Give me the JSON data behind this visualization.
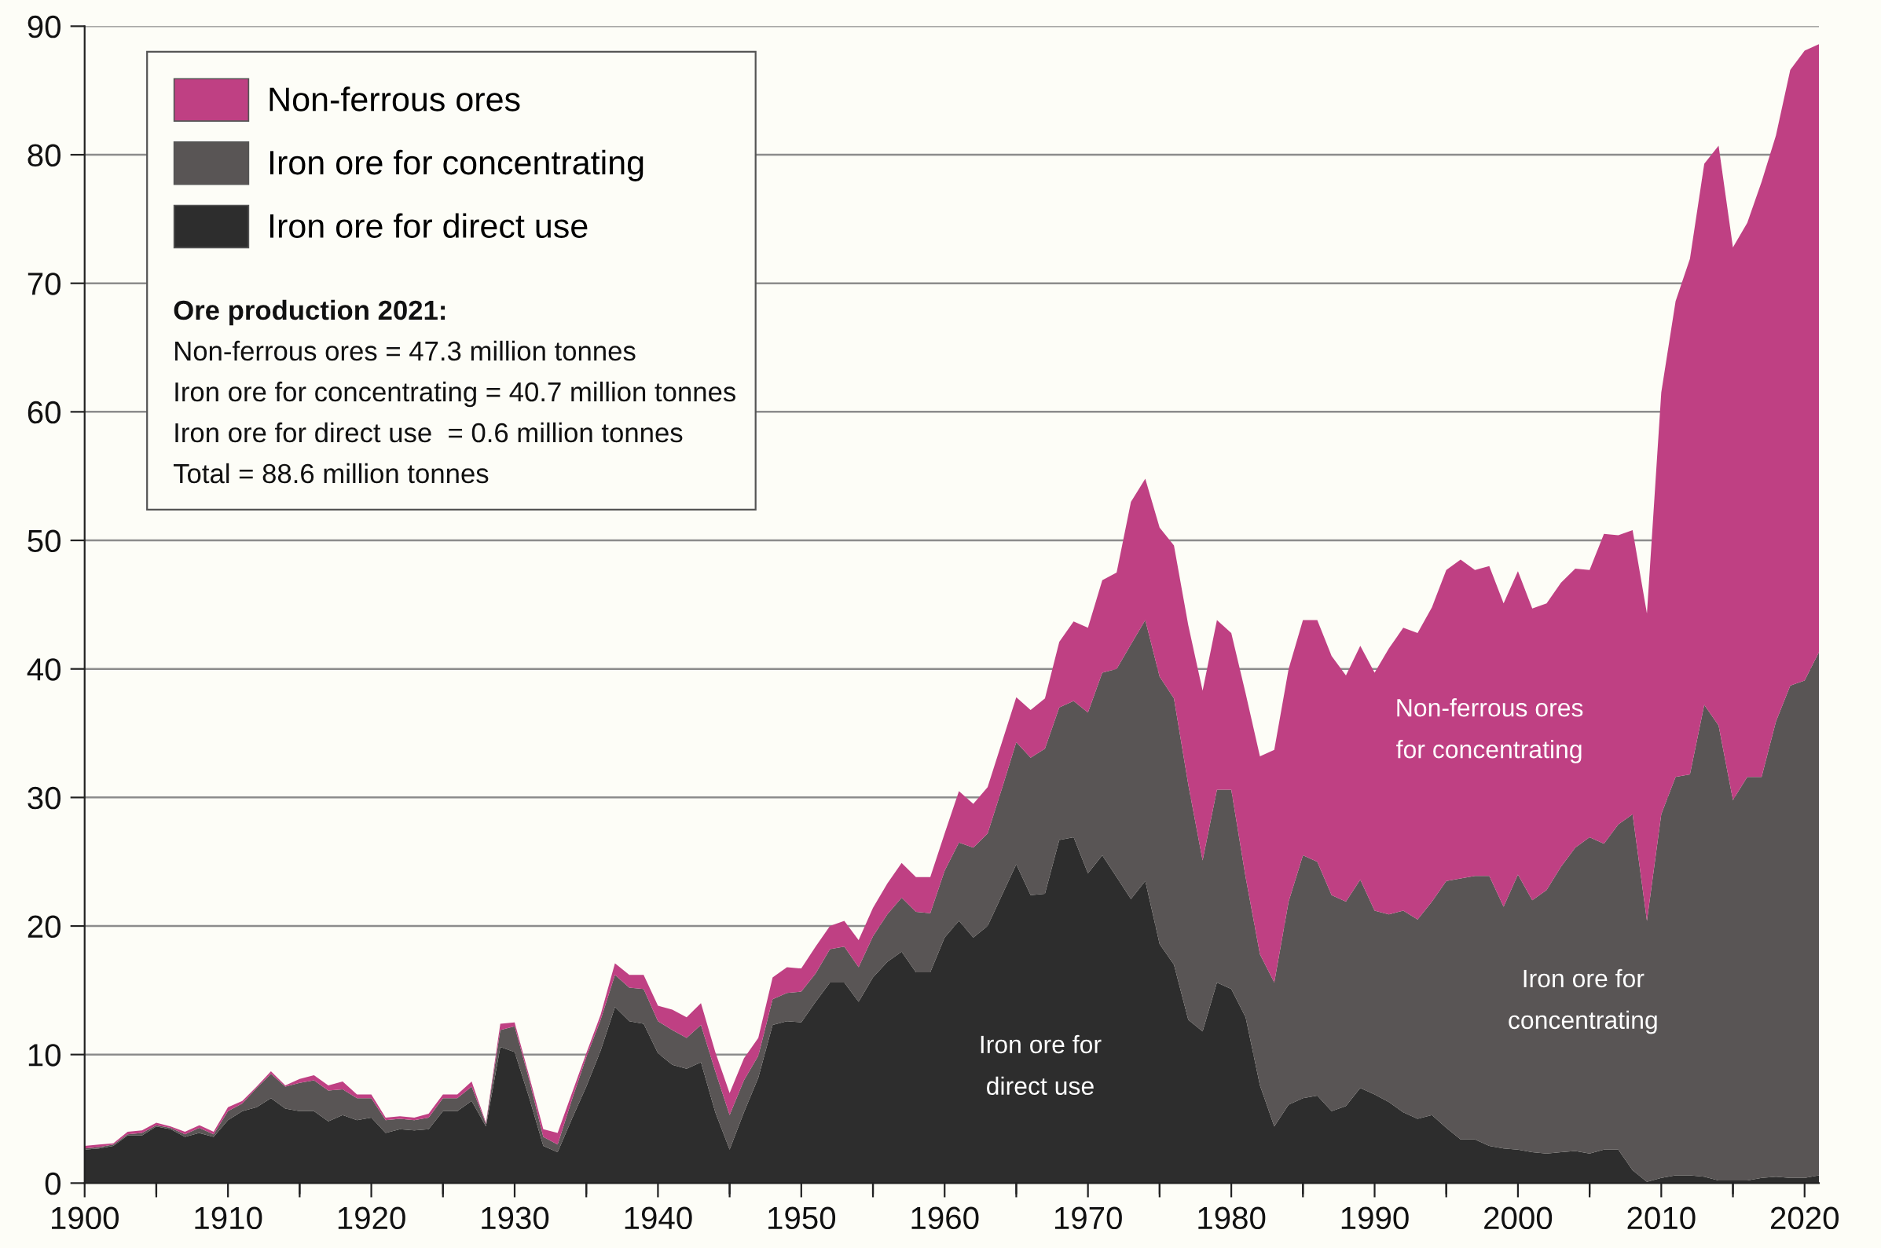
{
  "chart_data": {
    "type": "area",
    "stacked": true,
    "x": [
      1900,
      1901,
      1902,
      1903,
      1904,
      1905,
      1906,
      1907,
      1908,
      1909,
      1910,
      1911,
      1912,
      1913,
      1914,
      1915,
      1916,
      1917,
      1918,
      1919,
      1920,
      1921,
      1922,
      1923,
      1924,
      1925,
      1926,
      1927,
      1928,
      1929,
      1930,
      1931,
      1932,
      1933,
      1934,
      1935,
      1936,
      1937,
      1938,
      1939,
      1940,
      1941,
      1942,
      1943,
      1944,
      1945,
      1946,
      1947,
      1948,
      1949,
      1950,
      1951,
      1952,
      1953,
      1954,
      1955,
      1956,
      1957,
      1958,
      1959,
      1960,
      1961,
      1962,
      1963,
      1964,
      1965,
      1966,
      1967,
      1968,
      1969,
      1970,
      1971,
      1972,
      1973,
      1974,
      1975,
      1976,
      1977,
      1978,
      1979,
      1980,
      1981,
      1982,
      1983,
      1984,
      1985,
      1986,
      1987,
      1988,
      1989,
      1990,
      1991,
      1992,
      1993,
      1994,
      1995,
      1996,
      1997,
      1998,
      1999,
      2000,
      2001,
      2002,
      2003,
      2004,
      2005,
      2006,
      2007,
      2008,
      2009,
      2010,
      2011,
      2012,
      2013,
      2014,
      2015,
      2016,
      2017,
      2018,
      2019,
      2020,
      2021
    ],
    "series": [
      {
        "name": "Iron ore for direct use",
        "color": "#2d2d2d",
        "values": [
          2.6,
          2.7,
          2.9,
          3.7,
          3.7,
          4.4,
          4.2,
          3.6,
          3.9,
          3.6,
          4.9,
          5.6,
          5.9,
          6.6,
          5.8,
          5.6,
          5.6,
          4.8,
          5.3,
          4.9,
          5.1,
          3.9,
          4.2,
          4.1,
          4.2,
          5.6,
          5.6,
          6.4,
          4.4,
          10.6,
          10.2,
          6.7,
          2.9,
          2.4,
          5.0,
          7.5,
          10.3,
          13.7,
          12.6,
          12.4,
          10.1,
          9.2,
          8.9,
          9.4,
          5.5,
          2.6,
          5.5,
          8.2,
          12.3,
          12.6,
          12.5,
          14.1,
          15.6,
          15.6,
          14.1,
          16.0,
          17.2,
          18.0,
          16.4,
          16.4,
          19.1,
          20.4,
          19.1,
          20.0,
          22.4,
          24.8,
          22.4,
          22.5,
          26.7,
          26.9,
          24.1,
          25.5,
          23.8,
          22.1,
          23.5,
          18.6,
          17.0,
          12.7,
          11.8,
          15.6,
          15.1,
          12.9,
          7.6,
          4.4,
          6.1,
          6.6,
          6.8,
          5.6,
          6.0,
          7.4,
          6.9,
          6.3,
          5.5,
          5.0,
          5.3,
          4.3,
          3.4,
          3.4,
          2.9,
          2.7,
          2.6,
          2.4,
          2.3,
          2.4,
          2.5,
          2.3,
          2.6,
          2.6,
          1.0,
          0.1,
          0.4,
          0.6,
          0.6,
          0.5,
          0.2,
          0.2,
          0.2,
          0.4,
          0.5,
          0.4,
          0.4,
          0.6
        ]
      },
      {
        "name": "Iron ore for concentrating",
        "color": "#595555",
        "values": [
          0.1,
          0.1,
          0.1,
          0.1,
          0.2,
          0.1,
          0.1,
          0.2,
          0.4,
          0.2,
          0.7,
          0.6,
          1.5,
          1.9,
          1.7,
          2.2,
          2.4,
          2.4,
          2.0,
          1.7,
          1.5,
          1.0,
          0.8,
          0.8,
          0.9,
          1.0,
          1.0,
          1.1,
          0.2,
          1.3,
          2.0,
          1.4,
          0.7,
          0.6,
          1.5,
          2.3,
          2.4,
          2.5,
          2.6,
          2.7,
          2.5,
          2.7,
          2.4,
          2.9,
          3.2,
          2.7,
          2.5,
          1.7,
          2.0,
          2.2,
          2.4,
          2.2,
          2.6,
          2.8,
          2.7,
          3.2,
          3.7,
          4.2,
          4.7,
          4.6,
          5.2,
          6.1,
          7.0,
          7.2,
          8.3,
          9.5,
          10.7,
          11.3,
          10.3,
          10.6,
          12.5,
          14.2,
          16.2,
          19.8,
          20.3,
          20.8,
          20.7,
          18.3,
          13.3,
          15.0,
          15.5,
          10.9,
          10.2,
          11.2,
          15.8,
          18.9,
          18.2,
          16.8,
          15.9,
          16.2,
          14.3,
          14.6,
          15.7,
          15.5,
          16.6,
          19.2,
          20.3,
          20.5,
          21.0,
          18.8,
          21.4,
          19.6,
          20.5,
          22.2,
          23.6,
          24.6,
          23.8,
          25.3,
          27.7,
          20.3,
          28.3,
          31.0,
          31.2,
          36.7,
          35.4,
          29.6,
          31.4,
          31.2,
          35.4,
          38.3,
          38.7,
          40.7
        ]
      },
      {
        "name": "Non-ferrous ores",
        "color": "#bf4083",
        "values": [
          0.2,
          0.2,
          0.1,
          0.2,
          0.2,
          0.2,
          0.1,
          0.2,
          0.2,
          0.2,
          0.3,
          0.2,
          0.1,
          0.2,
          0.1,
          0.3,
          0.4,
          0.4,
          0.6,
          0.3,
          0.3,
          0.2,
          0.2,
          0.2,
          0.3,
          0.3,
          0.3,
          0.4,
          0.1,
          0.5,
          0.3,
          0.3,
          0.6,
          0.9,
          0.5,
          0.3,
          0.4,
          0.9,
          1.0,
          1.1,
          1.2,
          1.6,
          1.6,
          1.7,
          1.5,
          1.7,
          1.7,
          1.4,
          1.7,
          2.0,
          1.8,
          2.1,
          1.8,
          2.0,
          2.1,
          2.2,
          2.4,
          2.7,
          2.7,
          2.8,
          2.9,
          4.0,
          3.4,
          3.6,
          3.6,
          3.5,
          3.7,
          3.9,
          5.1,
          6.2,
          6.6,
          7.2,
          7.5,
          11.1,
          11.0,
          11.6,
          11.9,
          12.4,
          13.2,
          13.2,
          12.2,
          14.3,
          15.4,
          18.1,
          18.1,
          18.3,
          18.8,
          18.6,
          17.6,
          18.2,
          18.5,
          20.7,
          22.0,
          22.3,
          22.9,
          24.2,
          24.8,
          23.8,
          24.1,
          23.6,
          23.6,
          22.7,
          22.3,
          22.1,
          21.7,
          20.8,
          24.1,
          22.5,
          22.1,
          23.9,
          32.8,
          37.0,
          40.1,
          42.1,
          45.1,
          43.0,
          43.1,
          46.3,
          45.6,
          47.9,
          49.0,
          47.3
        ]
      }
    ],
    "xlim": [
      1900,
      2021
    ],
    "xticks": [
      1900,
      {
        "value": 1905,
        "label": null
      },
      1910,
      {
        "value": 1915,
        "label": null
      },
      1920,
      {
        "value": 1925,
        "label": null
      },
      1930,
      {
        "value": 1935,
        "label": null
      },
      1940,
      {
        "value": 1945,
        "label": null
      },
      1950,
      {
        "value": 1955,
        "label": null
      },
      1960,
      {
        "value": 1965,
        "label": null
      },
      1970,
      {
        "value": 1975,
        "label": null
      },
      1980,
      {
        "value": 1985,
        "label": null
      },
      1990,
      {
        "value": 1995,
        "label": null
      },
      2000,
      {
        "value": 2005,
        "label": null
      },
      2010,
      {
        "value": 2015,
        "label": null
      },
      2020
    ],
    "ylim": [
      0,
      90
    ],
    "yticks": [
      0,
      10,
      20,
      30,
      40,
      50,
      60,
      70,
      80,
      90
    ],
    "grid": "y",
    "legend": "top left",
    "annotations": [
      "Ore production 2021:",
      "Non-ferrous ores = 47.3 million tonnes",
      "Iron ore for concentrating = 40.7 million tonnes",
      "Iron ore for direct use  = 0.6 million tonnes",
      "Total = 88.6 million tonnes",
      "Non-ferrous ores\nfor concentrating",
      "Iron ore for\nconcentrating",
      "Iron ore for\ndirect use"
    ]
  }
}
